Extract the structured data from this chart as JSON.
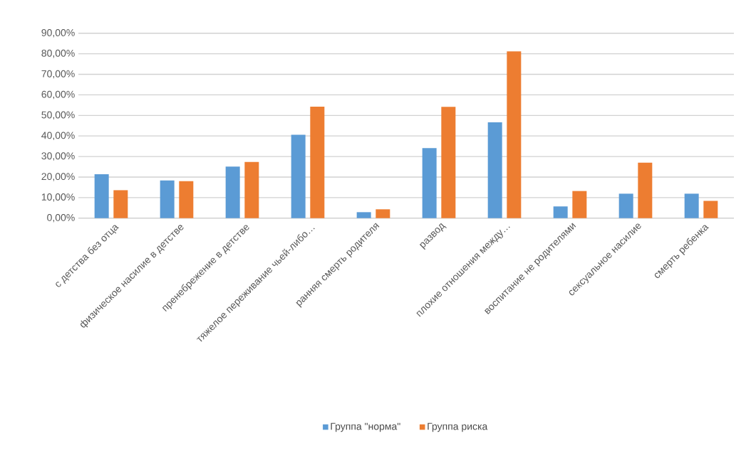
{
  "chart_data": {
    "type": "bar",
    "categories": [
      "с детства без отца",
      "физическое насилие в детстве",
      "пренебрежение в детстве",
      "тяжелое переживание чьей-либо…",
      "ранняя смерть родителя",
      "развод",
      "плохие отношения между…",
      "воспитание не родителями",
      "сексуальное насилие",
      "смерть ребенка"
    ],
    "series": [
      {
        "name": "Группа \"норма\"",
        "color": "#5b9bd5",
        "values": [
          21.4,
          18.3,
          25.1,
          40.6,
          2.9,
          34.1,
          46.6,
          5.7,
          11.9,
          11.9
        ]
      },
      {
        "name": "Группа риска",
        "color": "#ed7d31",
        "values": [
          13.6,
          18.0,
          27.3,
          54.3,
          4.3,
          54.2,
          81.2,
          13.2,
          27.0,
          8.4
        ]
      }
    ],
    "ylim": [
      0,
      90
    ],
    "yticks": [
      {
        "value": 0,
        "label": "0,00%"
      },
      {
        "value": 10,
        "label": "10,00%"
      },
      {
        "value": 20,
        "label": "20,00%"
      },
      {
        "value": 30,
        "label": "30,00%"
      },
      {
        "value": 40,
        "label": "40,00%"
      },
      {
        "value": 50,
        "label": "50,00%"
      },
      {
        "value": 60,
        "label": "60,00%"
      },
      {
        "value": 70,
        "label": "70,00%"
      },
      {
        "value": 80,
        "label": "80,00%"
      },
      {
        "value": 90,
        "label": "90,00%"
      }
    ],
    "grid": "y",
    "legend": "bottom"
  }
}
